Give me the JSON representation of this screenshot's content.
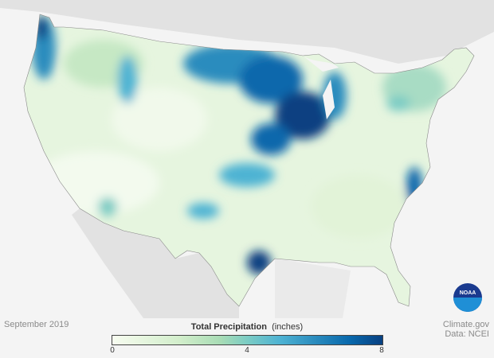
{
  "map": {
    "date": "September 2019",
    "legend": {
      "title": "Total Precipitation",
      "units": "(inches)",
      "min": "0",
      "mid": "4",
      "max": "8",
      "colors": [
        "#f7fcf0",
        "#d2eecb",
        "#a8dcb5",
        "#7bccc4",
        "#4eb3d3",
        "#2b8cbe",
        "#0868ac",
        "#084081"
      ]
    },
    "credit": "Climate.gov",
    "source": "Data: NCEI",
    "logo": "NOAA"
  }
}
